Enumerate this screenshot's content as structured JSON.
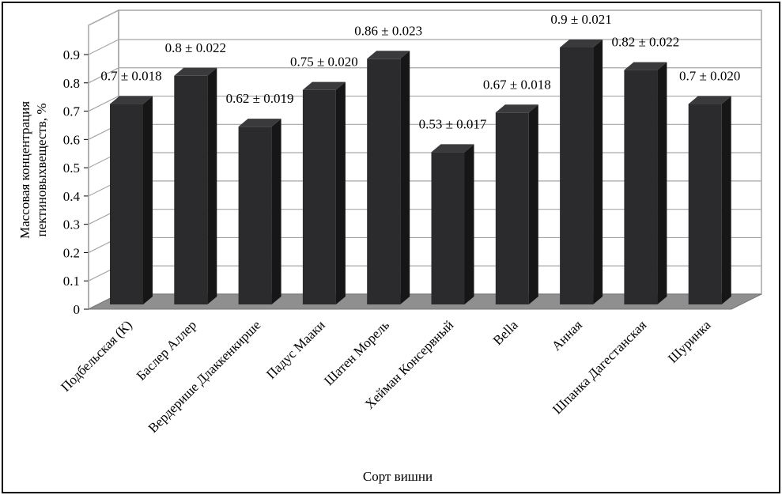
{
  "chart_data": {
    "type": "bar",
    "title": "",
    "xlabel": "Сорт вишни",
    "ylabel": "Массовая концентрация пектиновыхвеществ, %",
    "ylabel_lines": [
      "Массовая концентрация",
      "пектиновыхвеществ, %"
    ],
    "ylim": [
      0,
      0.9
    ],
    "yticks": [
      "0",
      "0.1",
      "0.2",
      "0.3",
      "0.4",
      "0.5",
      "0.6",
      "0.7",
      "0.8",
      "0.9"
    ],
    "grid": true,
    "categories": [
      "Подбельская (К)",
      "Баслер Аллер",
      "Вердерише Длаккенкирше",
      "Падус Мааки",
      "Шатен Морель",
      "Хейман Консервный",
      "Bella",
      "Анная",
      "Шпанка Дагестанская",
      "Шуринка"
    ],
    "values": [
      0.7,
      0.8,
      0.62,
      0.75,
      0.86,
      0.53,
      0.67,
      0.9,
      0.82,
      0.7
    ],
    "errors": [
      0.018,
      0.022,
      0.019,
      0.02,
      0.023,
      0.017,
      0.018,
      0.021,
      0.022,
      0.02
    ],
    "data_labels": [
      "0.7 ± 0.018",
      "0.8 ± 0.022",
      "0.62 ± 0.019",
      "0.75 ± 0.020",
      "0.86 ± 0.023",
      "0.53 ± 0.017",
      "0.67 ± 0.018",
      "0.9 ± 0.021",
      "0.82 ± 0.022",
      "0.7 ± 0.020"
    ],
    "colors": {
      "bar_front": "#2b2b2d",
      "bar_side": "#161617",
      "bar_top": "#3a3a3c",
      "floor": "#8f8f8f",
      "grid": "#a6a6a6"
    }
  }
}
